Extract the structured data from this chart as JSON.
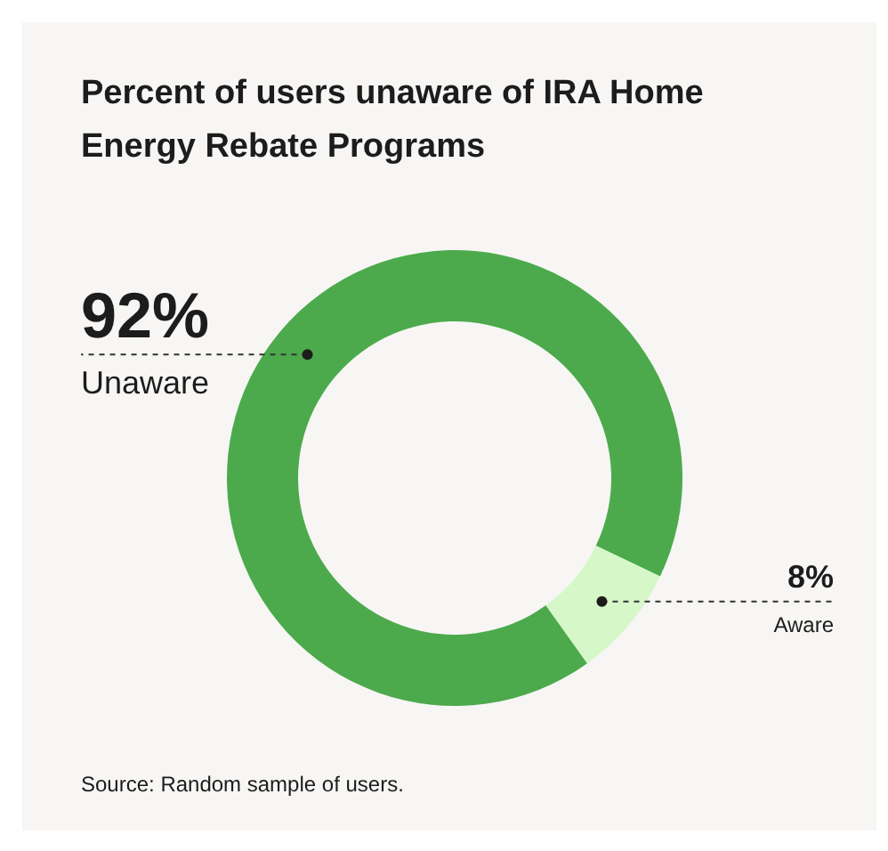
{
  "chart_data": {
    "type": "donut",
    "title": "Percent of users unaware of IRA Home Energy Rebate Programs",
    "categories": [
      "Unaware",
      "Aware"
    ],
    "values": [
      92,
      8
    ],
    "colors": [
      "#4caa4c",
      "#d6f7c8"
    ],
    "value_labels": [
      "92%",
      "8%"
    ],
    "annotations": [
      "Source: Random sample of users."
    ]
  }
}
